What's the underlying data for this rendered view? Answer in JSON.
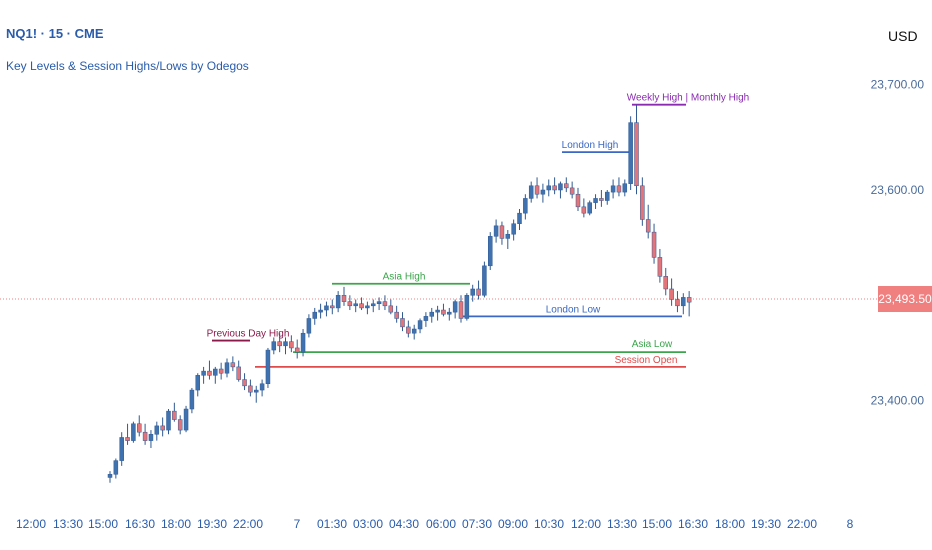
{
  "header": {
    "symbol": "NQ1! · 15 · CME",
    "indicator": "Key Levels & Session Highs/Lows by Odegos"
  },
  "currency": "USD",
  "last_price": "23,493.50",
  "colors": {
    "up": "#4072b0",
    "down": "#e37479",
    "asia": "#3aa54a",
    "london": "#3a68c4",
    "session_open": "#e04a4a",
    "prev_day": "#8a1a4a",
    "weekly": "#8a2bb0",
    "price_line": "#f07f80"
  },
  "chart_data": {
    "type": "candlestick",
    "yaxis": {
      "ticks": [
        "23,700.00",
        "23,600.00",
        "23,400.00"
      ],
      "tick_values": [
        23700,
        23600,
        23400
      ],
      "range": [
        23310,
        23740
      ]
    },
    "xaxis": {
      "ticks": [
        "12:00",
        "13:30",
        "15:00",
        "16:30",
        "18:00",
        "19:30",
        "22:00",
        "7",
        "01:30",
        "03:00",
        "04:30",
        "06:00",
        "07:30",
        "09:00",
        "10:30",
        "12:00",
        "13:30",
        "15:00",
        "16:30",
        "18:00",
        "19:30",
        "22:00",
        "8"
      ]
    },
    "levels": [
      {
        "name": "Previous Day High",
        "price": 23457,
        "x_start": "19:30",
        "x_end": "22:00"
      },
      {
        "name": "Asia High",
        "price": 23511,
        "x_start": "01:30",
        "x_end": "07:30"
      },
      {
        "name": "Asia Low",
        "price": 23446,
        "x_start": "22:00",
        "x_end": "16:30"
      },
      {
        "name": "Session Open",
        "price": 23432,
        "x_start": "22:00",
        "x_end": "16:30"
      },
      {
        "name": "London High",
        "price": 23636,
        "x_start": "10:30",
        "x_end": "13:30"
      },
      {
        "name": "London Low",
        "price": 23480,
        "x_start": "06:00",
        "x_end": "16:30"
      },
      {
        "name": "Weekly High | Monthly High",
        "price": 23681,
        "x_start": "13:30",
        "x_end": "16:30"
      }
    ],
    "candles": [
      [
        23327,
        23333,
        23322,
        23330
      ],
      [
        23330,
        23345,
        23326,
        23343
      ],
      [
        23343,
        23370,
        23338,
        23365
      ],
      [
        23365,
        23378,
        23358,
        23362
      ],
      [
        23362,
        23380,
        23360,
        23378
      ],
      [
        23378,
        23386,
        23366,
        23370
      ],
      [
        23370,
        23378,
        23358,
        23362
      ],
      [
        23362,
        23372,
        23355,
        23368
      ],
      [
        23368,
        23380,
        23362,
        23376
      ],
      [
        23376,
        23384,
        23366,
        23372
      ],
      [
        23372,
        23392,
        23368,
        23390
      ],
      [
        23390,
        23398,
        23380,
        23382
      ],
      [
        23382,
        23386,
        23368,
        23372
      ],
      [
        23372,
        23395,
        23370,
        23392
      ],
      [
        23392,
        23412,
        23388,
        23410
      ],
      [
        23410,
        23426,
        23404,
        23424
      ],
      [
        23424,
        23432,
        23416,
        23428
      ],
      [
        23428,
        23438,
        23420,
        23424
      ],
      [
        23424,
        23432,
        23416,
        23430
      ],
      [
        23430,
        23436,
        23420,
        23426
      ],
      [
        23426,
        23440,
        23422,
        23436
      ],
      [
        23436,
        23442,
        23428,
        23432
      ],
      [
        23432,
        23438,
        23418,
        23420
      ],
      [
        23420,
        23426,
        23410,
        23414
      ],
      [
        23414,
        23420,
        23404,
        23408
      ],
      [
        23408,
        23414,
        23398,
        23410
      ],
      [
        23410,
        23420,
        23404,
        23416
      ],
      [
        23416,
        23450,
        23412,
        23448
      ],
      [
        23448,
        23460,
        23444,
        23456
      ],
      [
        23456,
        23464,
        23446,
        23452
      ],
      [
        23452,
        23460,
        23444,
        23456
      ],
      [
        23456,
        23462,
        23446,
        23450
      ],
      [
        23450,
        23458,
        23440,
        23446
      ],
      [
        23446,
        23468,
        23442,
        23464
      ],
      [
        23464,
        23482,
        23460,
        23478
      ],
      [
        23478,
        23488,
        23472,
        23484
      ],
      [
        23484,
        23492,
        23478,
        23486
      ],
      [
        23486,
        23494,
        23480,
        23490
      ],
      [
        23490,
        23496,
        23482,
        23488
      ],
      [
        23488,
        23504,
        23484,
        23500
      ],
      [
        23500,
        23508,
        23490,
        23494
      ],
      [
        23494,
        23500,
        23486,
        23490
      ],
      [
        23490,
        23496,
        23484,
        23492
      ],
      [
        23492,
        23498,
        23486,
        23488
      ],
      [
        23488,
        23494,
        23482,
        23490
      ],
      [
        23490,
        23496,
        23484,
        23492
      ],
      [
        23492,
        23498,
        23486,
        23494
      ],
      [
        23494,
        23500,
        23486,
        23490
      ],
      [
        23490,
        23496,
        23482,
        23484
      ],
      [
        23484,
        23490,
        23474,
        23478
      ],
      [
        23478,
        23484,
        23466,
        23470
      ],
      [
        23470,
        23476,
        23460,
        23464
      ],
      [
        23464,
        23472,
        23458,
        23468
      ],
      [
        23468,
        23478,
        23464,
        23476
      ],
      [
        23476,
        23484,
        23470,
        23480
      ],
      [
        23480,
        23488,
        23474,
        23484
      ],
      [
        23484,
        23490,
        23476,
        23486
      ],
      [
        23486,
        23492,
        23480,
        23482
      ],
      [
        23482,
        23488,
        23476,
        23484
      ],
      [
        23484,
        23496,
        23478,
        23494
      ],
      [
        23494,
        23500,
        23474,
        23478
      ],
      [
        23478,
        23502,
        23476,
        23500
      ],
      [
        23500,
        23510,
        23494,
        23506
      ],
      [
        23506,
        23514,
        23496,
        23500
      ],
      [
        23500,
        23532,
        23498,
        23528
      ],
      [
        23528,
        23560,
        23524,
        23556
      ],
      [
        23556,
        23572,
        23550,
        23566
      ],
      [
        23566,
        23570,
        23548,
        23554
      ],
      [
        23554,
        23562,
        23544,
        23558
      ],
      [
        23558,
        23572,
        23552,
        23568
      ],
      [
        23568,
        23582,
        23562,
        23578
      ],
      [
        23578,
        23596,
        23572,
        23592
      ],
      [
        23592,
        23608,
        23588,
        23604
      ],
      [
        23604,
        23612,
        23592,
        23596
      ],
      [
        23596,
        23606,
        23588,
        23600
      ],
      [
        23600,
        23610,
        23594,
        23604
      ],
      [
        23604,
        23612,
        23596,
        23600
      ],
      [
        23600,
        23608,
        23592,
        23606
      ],
      [
        23606,
        23612,
        23598,
        23602
      ],
      [
        23602,
        23608,
        23592,
        23596
      ],
      [
        23596,
        23602,
        23580,
        23584
      ],
      [
        23584,
        23592,
        23574,
        23578
      ],
      [
        23578,
        23590,
        23576,
        23588
      ],
      [
        23588,
        23596,
        23582,
        23592
      ],
      [
        23592,
        23600,
        23584,
        23590
      ],
      [
        23590,
        23600,
        23586,
        23598
      ],
      [
        23598,
        23610,
        23592,
        23604
      ],
      [
        23604,
        23612,
        23594,
        23598
      ],
      [
        23598,
        23610,
        23594,
        23606
      ],
      [
        23606,
        23670,
        23600,
        23664
      ],
      [
        23664,
        23681,
        23596,
        23604
      ],
      [
        23604,
        23612,
        23566,
        23572
      ],
      [
        23572,
        23586,
        23554,
        23560
      ],
      [
        23560,
        23568,
        23530,
        23536
      ],
      [
        23536,
        23544,
        23512,
        23518
      ],
      [
        23518,
        23526,
        23500,
        23506
      ],
      [
        23506,
        23516,
        23490,
        23496
      ],
      [
        23496,
        23504,
        23484,
        23490
      ],
      [
        23490,
        23502,
        23482,
        23498
      ],
      [
        23498,
        23504,
        23480,
        23493.5
      ]
    ]
  }
}
